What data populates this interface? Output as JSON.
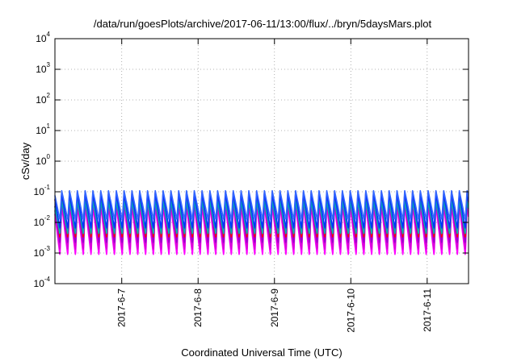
{
  "chart_data": {
    "type": "line",
    "title": "/data/run/goesPlots/archive/2017-06-11/13:00/flux/../bryn/5daysMars.plot",
    "xlabel": "Coordinated Universal Time (UTC)",
    "ylabel": "cSv/day",
    "yscale": "log",
    "ylim": [
      0.0001,
      10000
    ],
    "xlim": [
      "2017-06-06T03:00",
      "2017-06-11T13:00"
    ],
    "grid": true,
    "y_ticks": [
      {
        "base": "10",
        "exp": "-4"
      },
      {
        "base": "10",
        "exp": "-3"
      },
      {
        "base": "10",
        "exp": "-2"
      },
      {
        "base": "10",
        "exp": "-1"
      },
      {
        "base": "10",
        "exp": "0"
      },
      {
        "base": "10",
        "exp": "1"
      },
      {
        "base": "10",
        "exp": "2"
      },
      {
        "base": "10",
        "exp": "3"
      },
      {
        "base": "10",
        "exp": "4"
      }
    ],
    "x_ticks": [
      {
        "date": "2017-06-07T00:00",
        "label": "2017-6-7"
      },
      {
        "date": "2017-06-08T00:00",
        "label": "2017-6-8"
      },
      {
        "date": "2017-06-09T00:00",
        "label": "2017-6-9"
      },
      {
        "date": "2017-06-10T00:00",
        "label": "2017-6-10"
      },
      {
        "date": "2017-06-11T00:00",
        "label": "2017-6-11"
      }
    ],
    "oscillation_period_hours": 2.45,
    "series": [
      {
        "color": "#ff00ff",
        "peak": 0.035,
        "trough": 0.0008
      },
      {
        "color": "#d800d8",
        "peak": 0.045,
        "trough": 0.0012
      },
      {
        "color": "#9900cc",
        "peak": 0.06,
        "trough": 0.002
      },
      {
        "color": "#ff0000",
        "peak": 0.1,
        "trough": 0.003
      },
      {
        "color": "#00b0b0",
        "peak": 0.05,
        "trough": 0.004
      },
      {
        "color": "#0033ff",
        "peak": 0.09,
        "trough": 0.006
      },
      {
        "color": "#3366ff",
        "peak": 0.11,
        "trough": 0.012
      }
    ]
  }
}
